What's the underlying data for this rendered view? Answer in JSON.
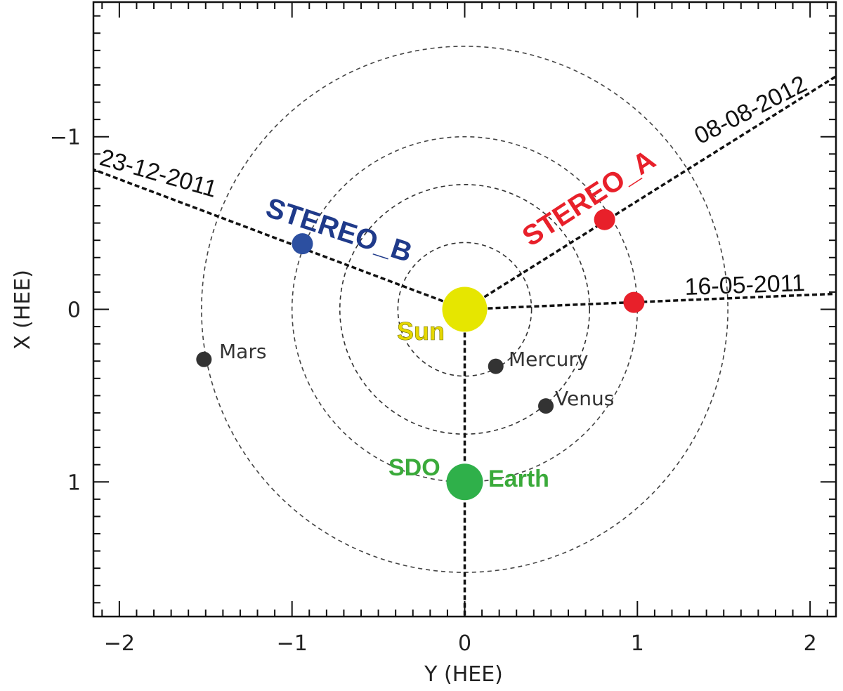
{
  "chart_data": {
    "type": "scatter",
    "xlabel": "Y (HEE)",
    "ylabel": "X (HEE)",
    "xlim": [
      -2.15,
      2.15
    ],
    "ylim": [
      -1.78,
      1.78
    ],
    "y_inverted": true,
    "x_ticks": [
      -2,
      -1,
      0,
      1,
      2
    ],
    "y_ticks": [
      -1,
      0,
      1
    ],
    "x_tick_labels": [
      "−2",
      "−1",
      "0",
      "1",
      "2"
    ],
    "y_tick_labels": [
      "−1",
      "0",
      "1"
    ],
    "orbit_radii": [
      0.387,
      0.723,
      1.0,
      1.524
    ],
    "sun": {
      "label": "Sun",
      "y": 0,
      "x": 0
    },
    "planets": [
      {
        "name": "Mercury",
        "y": 0.18,
        "x": 0.33
      },
      {
        "name": "Venus",
        "y": 0.47,
        "x": 0.56
      },
      {
        "name": "Mars",
        "y": -1.51,
        "x": 0.29
      }
    ],
    "earth": {
      "label": "Earth",
      "y": 0,
      "x": 1.0
    },
    "sdo_label": "SDO",
    "spacecraft": [
      {
        "name": "STEREO_B",
        "y": -0.94,
        "x": -0.38,
        "color": "#2c4fa0",
        "label_color": "#1f3a8a"
      },
      {
        "name": "STEREO_A",
        "y": 0.81,
        "x": -0.52,
        "color": "#e8202a",
        "label_color": "#e8202a"
      }
    ],
    "stereo_a_2011": {
      "y": 0.98,
      "x": -0.04,
      "color": "#e8202a"
    },
    "date_lines": [
      {
        "date": "23-12-2011",
        "end_y": -2.15,
        "end_x": -0.81
      },
      {
        "date": "08-08-2012",
        "end_y": 2.15,
        "end_x": -1.35
      },
      {
        "date": "16-05-2011",
        "end_y": 2.15,
        "end_x": -0.09
      }
    ],
    "earth_line_end_x": 1.78,
    "colors": {
      "sun": "#e6e600",
      "earth": "#2fb04a",
      "planet": "#333333",
      "sun_label": "#e6d800",
      "earth_label": "#3aaa3a"
    }
  }
}
